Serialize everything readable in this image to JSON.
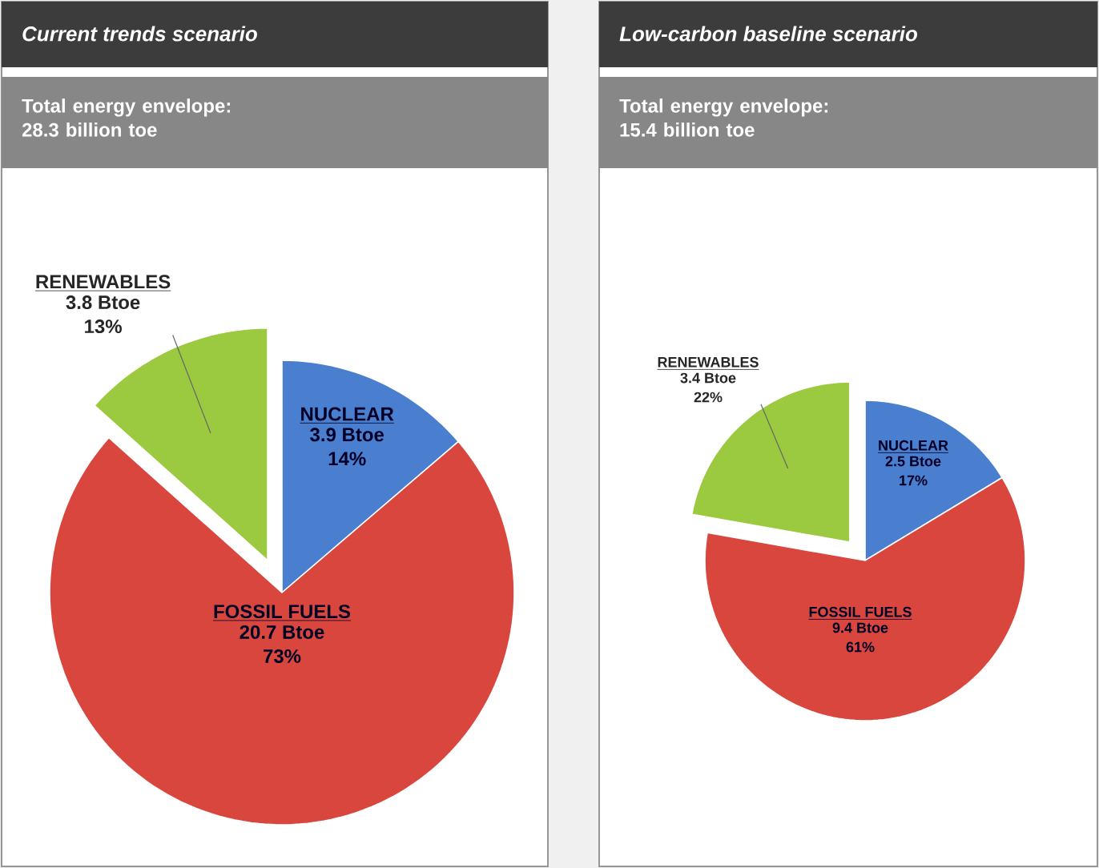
{
  "chart_data": [
    {
      "type": "pie",
      "title": "Current trends scenario",
      "subtitle": "Total energy envelope: 28.3 billion toe",
      "categories": [
        "NUCLEAR",
        "FOSSIL FUELS",
        "RENEWABLES"
      ],
      "values": [
        3.9,
        20.7,
        3.8
      ],
      "colors": [
        "#4a7fcf",
        "#d9463e",
        "#9bc93f"
      ],
      "value_labels": [
        "3.9 Btoe 14%",
        "20.7 Btoe 73%",
        "3.8 Btoe 13%"
      ]
    },
    {
      "type": "pie",
      "title": "Low-carbon baseline scenario",
      "subtitle": "Total energy envelope: 15.4 billion toe",
      "categories": [
        "NUCLEAR",
        "FOSSIL FUELS",
        "RENEWABLES"
      ],
      "values": [
        2.5,
        9.4,
        3.4
      ],
      "colors": [
        "#4a7fcf",
        "#d9463e",
        "#9bc93f"
      ],
      "value_labels": [
        "2.5 Btoe 17%",
        "9.4 Btoe 61%",
        "3.4 Btoe 22%"
      ]
    }
  ]
}
